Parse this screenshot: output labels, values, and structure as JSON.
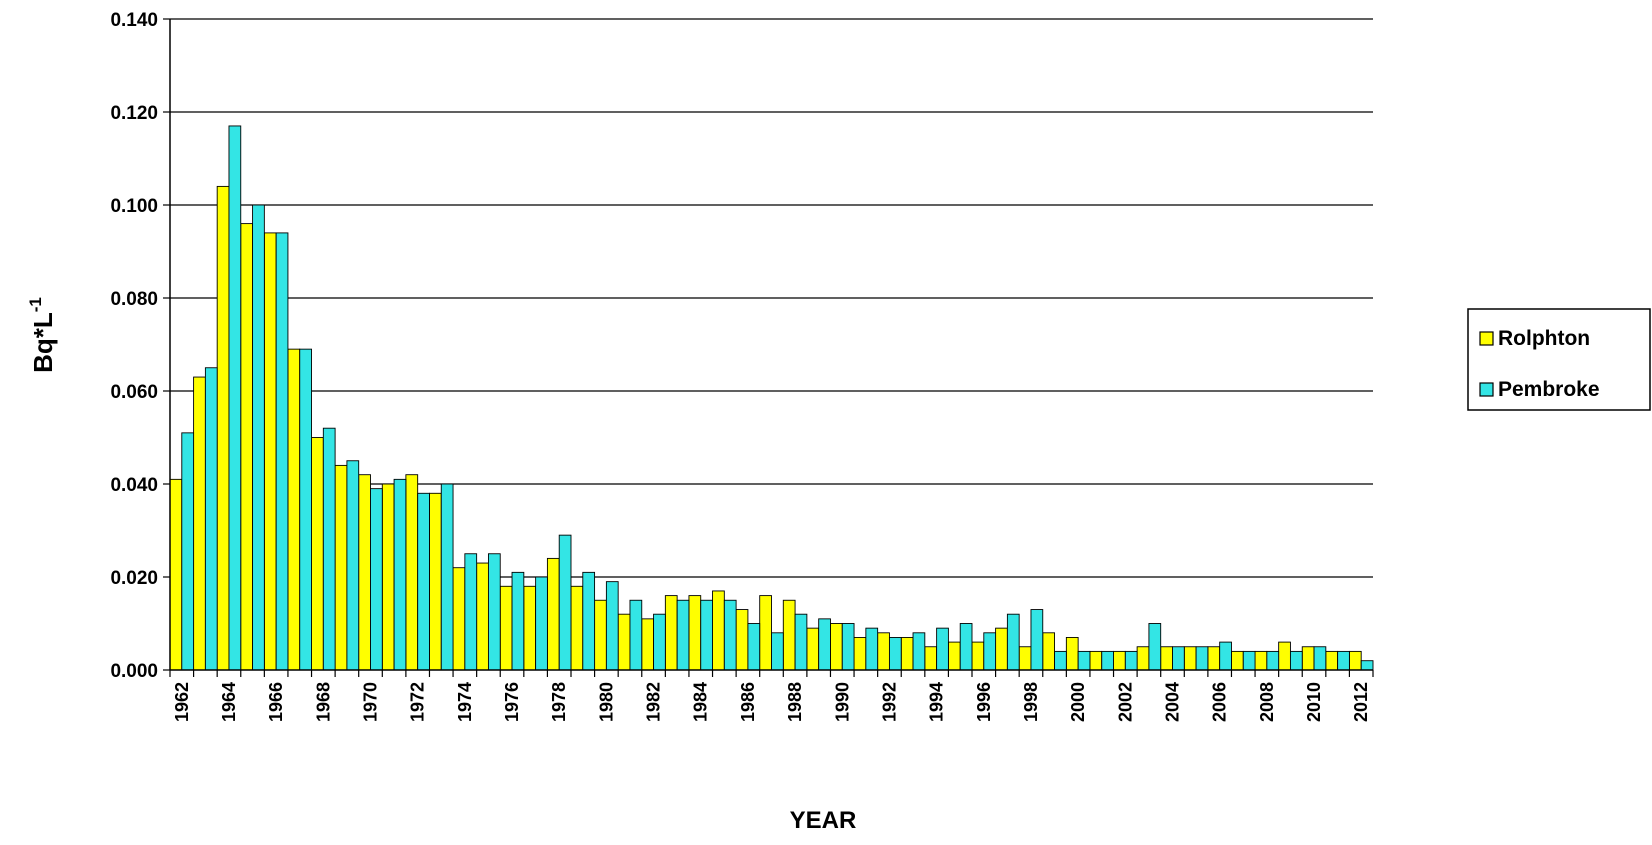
{
  "chart_data": {
    "type": "bar",
    "title": "",
    "xlabel": "YEAR",
    "ylabel_main": "Bq*L",
    "ylabel_sup": "-1",
    "ylim": [
      0,
      0.14
    ],
    "y_ticks": [
      "0.000",
      "0.020",
      "0.040",
      "0.060",
      "0.080",
      "0.100",
      "0.120",
      "0.140"
    ],
    "y_tick_values": [
      0,
      0.02,
      0.04,
      0.06,
      0.08,
      0.1,
      0.12,
      0.14
    ],
    "grid": true,
    "legend_position": "right",
    "categories": [
      1962,
      1963,
      1964,
      1965,
      1966,
      1967,
      1968,
      1969,
      1970,
      1971,
      1972,
      1973,
      1974,
      1975,
      1976,
      1977,
      1978,
      1979,
      1980,
      1981,
      1982,
      1983,
      1984,
      1985,
      1986,
      1987,
      1988,
      1989,
      1990,
      1991,
      1992,
      1993,
      1994,
      1995,
      1996,
      1997,
      1998,
      1999,
      2000,
      2001,
      2002,
      2003,
      2004,
      2005,
      2006,
      2007,
      2008,
      2009,
      2010,
      2011,
      2012
    ],
    "tick_labels": [
      "1962",
      "1964",
      "1966",
      "1968",
      "1970",
      "1972",
      "1974",
      "1976",
      "1978",
      "1980",
      "1982",
      "1984",
      "1986",
      "1988",
      "1990",
      "1992",
      "1994",
      "1996",
      "1998",
      "2000",
      "2002",
      "2004",
      "2006",
      "2008",
      "2010",
      "2012"
    ],
    "series": [
      {
        "name": "Rolphton",
        "color": "#ffff00",
        "values": [
          0.041,
          0.063,
          0.104,
          0.096,
          0.094,
          0.069,
          0.05,
          0.044,
          0.042,
          0.04,
          0.042,
          0.038,
          0.022,
          0.023,
          0.018,
          0.018,
          0.024,
          0.018,
          0.015,
          0.012,
          0.011,
          0.016,
          0.016,
          0.017,
          0.013,
          0.016,
          0.015,
          0.009,
          0.01,
          0.007,
          0.008,
          0.007,
          0.005,
          0.006,
          0.006,
          0.009,
          0.005,
          0.008,
          0.007,
          0.004,
          0.004,
          0.005,
          0.005,
          0.005,
          0.005,
          0.004,
          0.004,
          0.006,
          0.005,
          0.004,
          0.004
        ]
      },
      {
        "name": "Pembroke",
        "color": "#33e5e5",
        "values": [
          0.051,
          0.065,
          0.117,
          0.1,
          0.094,
          0.069,
          0.052,
          0.045,
          0.039,
          0.041,
          0.038,
          0.04,
          0.025,
          0.025,
          0.021,
          0.02,
          0.029,
          0.021,
          0.019,
          0.015,
          0.012,
          0.015,
          0.015,
          0.015,
          0.01,
          0.008,
          0.012,
          0.011,
          0.01,
          0.009,
          0.007,
          0.008,
          0.009,
          0.01,
          0.008,
          0.012,
          0.013,
          0.004,
          0.004,
          0.004,
          0.004,
          0.01,
          0.005,
          0.005,
          0.006,
          0.004,
          0.004,
          0.004,
          0.005,
          0.004,
          0.002
        ]
      }
    ]
  }
}
